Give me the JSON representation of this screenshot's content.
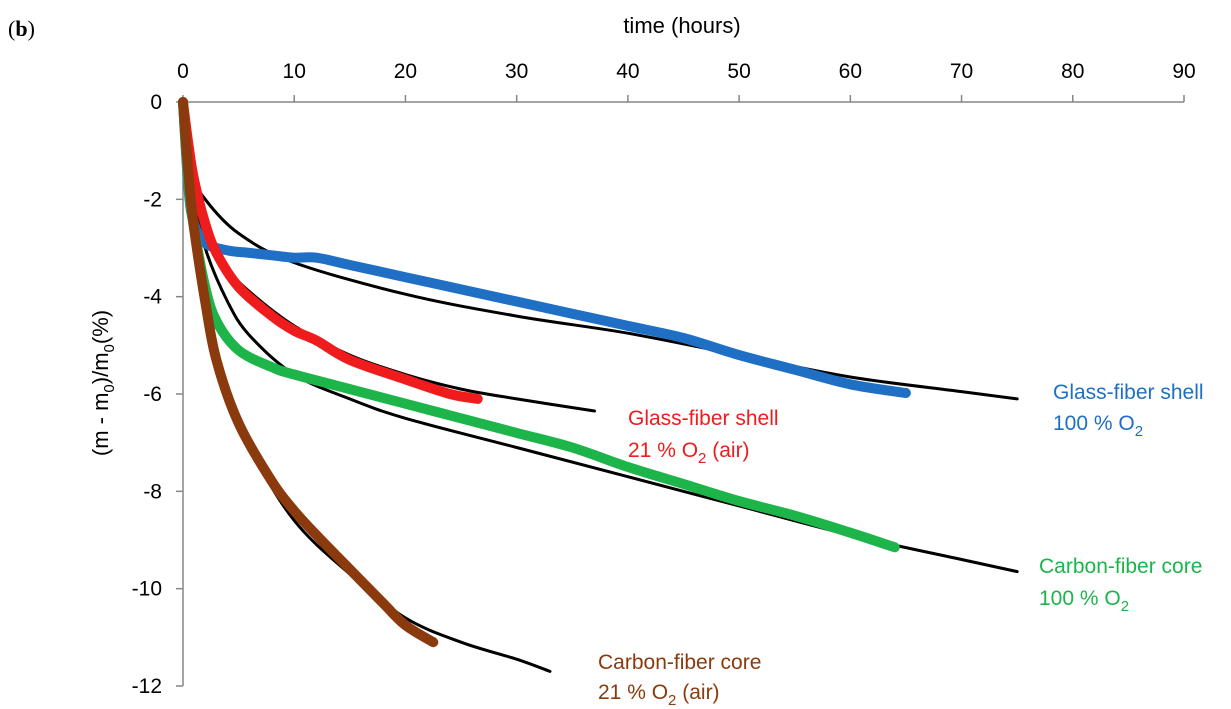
{
  "panel_label": {
    "open": "(",
    "letter": "b",
    "close": ")"
  },
  "chart_data": {
    "type": "line",
    "xlabel": "time (hours)",
    "ylabel": {
      "part1": "(m - m",
      "sub1": "0",
      "part2": ")/m",
      "sub2": "0",
      "part3": "(%)"
    },
    "xlim": [
      0,
      90
    ],
    "ylim": [
      -12,
      0
    ],
    "x_ticks": [
      "0",
      "10",
      "20",
      "30",
      "40",
      "50",
      "60",
      "70",
      "80",
      "90"
    ],
    "y_ticks": [
      "0",
      "-2",
      "-4",
      "-6",
      "-8",
      "-10",
      "-12"
    ],
    "x_axis_position": "top",
    "grid": false,
    "series": [
      {
        "color": "#1F6FC5",
        "label": {
          "line1": "Glass-fiber shell",
          "line2_pre": "100 % O",
          "line2_sub": "2",
          "line2_post": ""
        },
        "measured": [
          [
            0,
            0
          ],
          [
            0.5,
            -1.8
          ],
          [
            1,
            -2.5
          ],
          [
            2,
            -2.9
          ],
          [
            4,
            -3.05
          ],
          [
            6,
            -3.1
          ],
          [
            8,
            -3.15
          ],
          [
            10,
            -3.2
          ],
          [
            12,
            -3.2
          ],
          [
            15,
            -3.35
          ],
          [
            20,
            -3.6
          ],
          [
            25,
            -3.85
          ],
          [
            30,
            -4.1
          ],
          [
            35,
            -4.35
          ],
          [
            40,
            -4.6
          ],
          [
            45,
            -4.85
          ],
          [
            50,
            -5.2
          ],
          [
            55,
            -5.5
          ],
          [
            60,
            -5.8
          ],
          [
            65,
            -5.98
          ]
        ],
        "fit": [
          [
            0,
            0
          ],
          [
            1,
            -1.5
          ],
          [
            2,
            -2.0
          ],
          [
            5,
            -2.7
          ],
          [
            10,
            -3.3
          ],
          [
            20,
            -3.95
          ],
          [
            30,
            -4.4
          ],
          [
            40,
            -4.75
          ],
          [
            50,
            -5.2
          ],
          [
            60,
            -5.65
          ],
          [
            70,
            -5.95
          ],
          [
            75,
            -6.1
          ]
        ]
      },
      {
        "color": "#EE1C1C",
        "label": {
          "line1": "Glass-fiber shell",
          "line2_pre": "21 % O",
          "line2_sub": "2",
          "line2_post": " (air)"
        },
        "measured": [
          [
            0,
            0
          ],
          [
            0.5,
            -0.9
          ],
          [
            1,
            -1.6
          ],
          [
            2,
            -2.5
          ],
          [
            3,
            -3.1
          ],
          [
            5,
            -3.8
          ],
          [
            8,
            -4.4
          ],
          [
            10,
            -4.7
          ],
          [
            12,
            -4.9
          ],
          [
            15,
            -5.3
          ],
          [
            20,
            -5.7
          ],
          [
            24,
            -6.0
          ],
          [
            26.5,
            -6.1
          ]
        ],
        "fit": [
          [
            0,
            0
          ],
          [
            0.5,
            -1.0
          ],
          [
            1,
            -1.7
          ],
          [
            2,
            -2.5
          ],
          [
            4,
            -3.4
          ],
          [
            6,
            -3.9
          ],
          [
            10,
            -4.6
          ],
          [
            15,
            -5.2
          ],
          [
            20,
            -5.6
          ],
          [
            25,
            -5.9
          ],
          [
            30,
            -6.1
          ],
          [
            37,
            -6.35
          ]
        ]
      },
      {
        "color": "#1DB54A",
        "label": {
          "line1": "Carbon-fiber core",
          "line2_pre": "100 % O",
          "line2_sub": "2",
          "line2_post": ""
        },
        "measured": [
          [
            0,
            0
          ],
          [
            0.5,
            -1.7
          ],
          [
            1,
            -2.6
          ],
          [
            2,
            -3.8
          ],
          [
            3,
            -4.5
          ],
          [
            5,
            -5.1
          ],
          [
            8,
            -5.45
          ],
          [
            10,
            -5.6
          ],
          [
            15,
            -5.9
          ],
          [
            20,
            -6.2
          ],
          [
            25,
            -6.5
          ],
          [
            30,
            -6.8
          ],
          [
            35,
            -7.1
          ],
          [
            40,
            -7.5
          ],
          [
            45,
            -7.85
          ],
          [
            50,
            -8.2
          ],
          [
            55,
            -8.5
          ],
          [
            60,
            -8.85
          ],
          [
            64,
            -9.15
          ]
        ],
        "fit": [
          [
            0,
            0
          ],
          [
            1,
            -1.9
          ],
          [
            2,
            -3.0
          ],
          [
            4,
            -4.1
          ],
          [
            6,
            -4.8
          ],
          [
            10,
            -5.6
          ],
          [
            15,
            -6.1
          ],
          [
            20,
            -6.5
          ],
          [
            30,
            -7.1
          ],
          [
            40,
            -7.7
          ],
          [
            50,
            -8.3
          ],
          [
            60,
            -8.9
          ],
          [
            70,
            -9.4
          ],
          [
            75,
            -9.65
          ]
        ]
      },
      {
        "color": "#8B3A0E",
        "label": {
          "line1": "Carbon-fiber core",
          "line2_pre": "21 % O",
          "line2_sub": "2",
          "line2_post": " (air)"
        },
        "measured": [
          [
            0,
            0
          ],
          [
            0.5,
            -1.5
          ],
          [
            1,
            -2.6
          ],
          [
            2,
            -4.1
          ],
          [
            3,
            -5.3
          ],
          [
            5,
            -6.6
          ],
          [
            8,
            -7.8
          ],
          [
            10,
            -8.4
          ],
          [
            12,
            -8.9
          ],
          [
            15,
            -9.6
          ],
          [
            18,
            -10.3
          ],
          [
            20,
            -10.75
          ],
          [
            22.5,
            -11.1
          ]
        ],
        "fit": [
          [
            0,
            0
          ],
          [
            0.5,
            -1.5
          ],
          [
            1,
            -2.6
          ],
          [
            2,
            -4.0
          ],
          [
            4,
            -5.9
          ],
          [
            6,
            -7.1
          ],
          [
            10,
            -8.6
          ],
          [
            15,
            -9.7
          ],
          [
            20,
            -10.6
          ],
          [
            25,
            -11.1
          ],
          [
            30,
            -11.45
          ],
          [
            33,
            -11.7
          ]
        ]
      }
    ]
  }
}
